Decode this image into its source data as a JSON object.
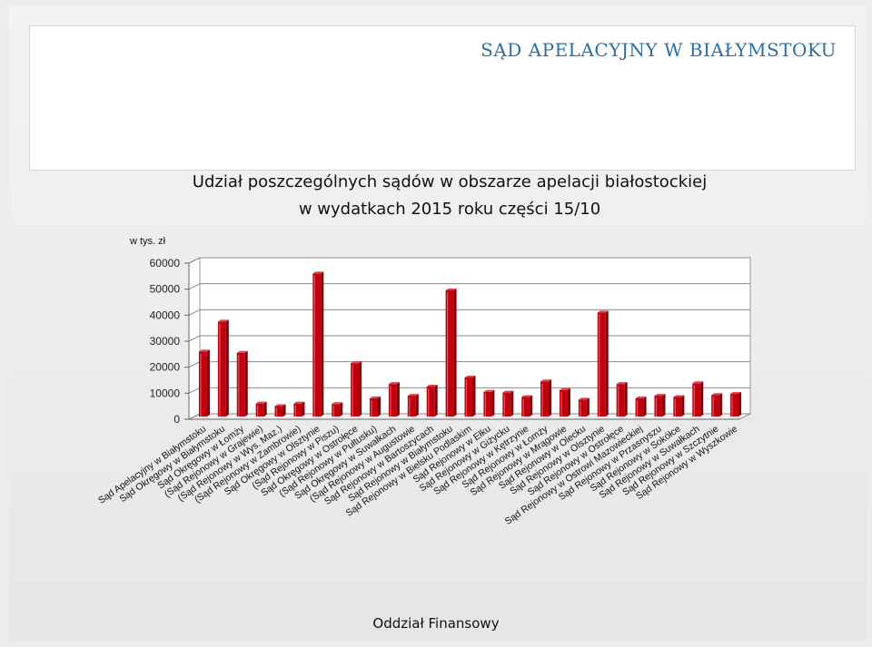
{
  "slide": {
    "title": "SĄD APELACYJNY W BIAŁYMSTOKU",
    "footer": "Oddział Finansowy"
  },
  "chart_data": {
    "type": "bar",
    "title_line1": "Udział poszczególnych sądów w obszarze apelacji białostockiej",
    "title_line2": "w wydatkach 2015 roku części 15/10",
    "ylabel": "w tys. zł",
    "ylim": [
      0,
      60000
    ],
    "yticks": [
      0,
      10000,
      20000,
      30000,
      40000,
      50000,
      60000
    ],
    "grid": true,
    "bar_color": "#c0000e",
    "categories": [
      "Sąd Apelacyjny w Białymstoku",
      "Sąd Okręgowy w Białymstoku",
      "Sąd Okręgowy w Łomży",
      "(Sąd Rejonowy w Grajewie)",
      "(Sąd Rejonowy w Wys. Maz.)",
      "(Sąd Rejonowy w Zambrowie)",
      "Sąd Okręgowy w Olsztynie",
      "(Sąd Rejonowy w Piszu)",
      "Sąd Okręgowy w Ostrołęce",
      "(Sąd Rejonowy w Pułtusku)",
      "Sąd Okręgowy w Suwałkach",
      "(Sąd Rejonowy w Augustowie",
      "Sąd Rejonowy w Bartoszycach",
      "Sąd Rejonowy w Białymstoku",
      "Sąd Rejonowy w Bielsku Podlaskim",
      "Sąd Rejonowy w Ełku",
      "Sąd Rejonowy w Giżycku",
      "Sąd Rejonowy w Kętrzynie",
      "Sąd Rejonowy w Łomży",
      "Sąd Rejonowy w Mrągowie",
      "Sąd Rejonowy w Olecku",
      "Sąd Rejonowy w Olsztynie",
      "Sąd Rejonowy w Ostrołęce",
      "Sąd Rejonowy w Ostrowi Mazowieckiej",
      "Sąd Rejonowy w Przasnyszu",
      "Sąd Rejonowy w Sokółce",
      "Sąd Rejonowy w Suwałkach",
      "Sąd Rejonowy w Szczytnie",
      "Sąd Rejonowy w Wyszkowie"
    ],
    "values": [
      25000,
      36500,
      24500,
      5000,
      4000,
      5000,
      55000,
      4800,
      20500,
      7000,
      12500,
      8000,
      11500,
      48500,
      15000,
      9500,
      9200,
      7500,
      13500,
      10200,
      6500,
      40000,
      12500,
      7000,
      8000,
      7500,
      12800,
      8300,
      8700
    ]
  }
}
